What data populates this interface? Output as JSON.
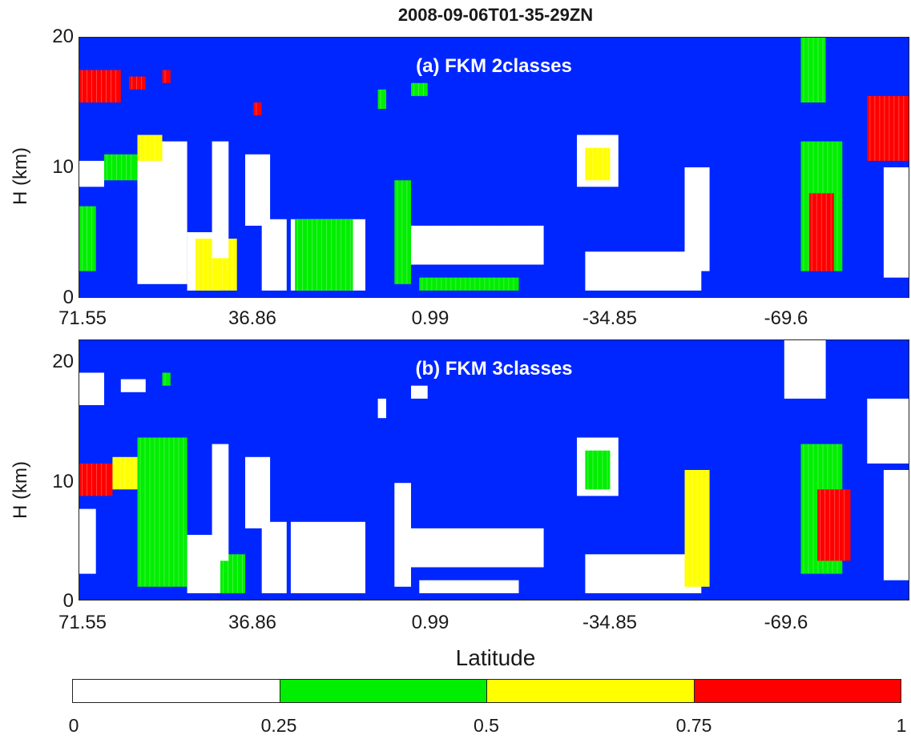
{
  "title": "2008-09-06T01-35-29ZN",
  "xlabel": "Latitude",
  "ylabel": "H (km)",
  "colors": {
    "background": "#0026ff",
    "class_0_0.25": "#ffffff",
    "class_0.25_0.5": "#00ee00",
    "class_0.5_0.75": "#ffff00",
    "class_0.75_1": "#ff0000"
  },
  "colorbar": {
    "ticks": [
      "0",
      "0.25",
      "0.5",
      "0.75",
      "1"
    ],
    "colors": [
      "#ffffff",
      "#00ee00",
      "#ffff00",
      "#ff0000"
    ]
  },
  "chart_data": [
    {
      "type": "heatmap",
      "panel_label": "(a) FKM 2classes",
      "ylabel": "H (km)",
      "ylim": [
        0,
        20
      ],
      "yticks": [
        "0",
        "10",
        "20"
      ],
      "xticks": [
        "71.55",
        "36.86",
        "0.99",
        "-34.85",
        "-69.6"
      ],
      "xlabel": "",
      "regions": [
        {
          "x": [
            0.0,
            0.05
          ],
          "y": [
            15.0,
            17.5
          ],
          "v": 0.9
        },
        {
          "x": [
            0.06,
            0.08
          ],
          "y": [
            16.0,
            17.0
          ],
          "v": 0.9
        },
        {
          "x": [
            0.1,
            0.11
          ],
          "y": [
            16.5,
            17.5
          ],
          "v": 0.8
        },
        {
          "x": [
            0.0,
            0.03
          ],
          "y": [
            8.5,
            10.5
          ],
          "v": 0.1
        },
        {
          "x": [
            0.03,
            0.07
          ],
          "y": [
            9.0,
            11.0
          ],
          "v": 0.35
        },
        {
          "x": [
            0.07,
            0.13
          ],
          "y": [
            1.0,
            12.0
          ],
          "v": 0.1
        },
        {
          "x": [
            0.07,
            0.1
          ],
          "y": [
            10.5,
            12.5
          ],
          "v": 0.55
        },
        {
          "x": [
            0.0,
            0.02
          ],
          "y": [
            2.0,
            7.0
          ],
          "v": 0.35
        },
        {
          "x": [
            0.13,
            0.17
          ],
          "y": [
            0.5,
            5.0
          ],
          "v": 0.1
        },
        {
          "x": [
            0.14,
            0.19
          ],
          "y": [
            0.5,
            4.5
          ],
          "v": 0.7
        },
        {
          "x": [
            0.16,
            0.18
          ],
          "y": [
            3.0,
            12.0
          ],
          "v": 0.1
        },
        {
          "x": [
            0.2,
            0.23
          ],
          "y": [
            5.5,
            11.0
          ],
          "v": 0.1
        },
        {
          "x": [
            0.21,
            0.22
          ],
          "y": [
            14.0,
            15.0
          ],
          "v": 0.9
        },
        {
          "x": [
            0.22,
            0.25
          ],
          "y": [
            0.5,
            6.0
          ],
          "v": 0.1
        },
        {
          "x": [
            0.255,
            0.345
          ],
          "y": [
            0.5,
            6.0
          ],
          "v": 0.1
        },
        {
          "x": [
            0.26,
            0.33
          ],
          "y": [
            0.5,
            6.0
          ],
          "v": 0.45
        },
        {
          "x": [
            0.38,
            0.4
          ],
          "y": [
            1.0,
            9.0
          ],
          "v": 0.3
        },
        {
          "x": [
            0.4,
            0.56
          ],
          "y": [
            2.5,
            5.5
          ],
          "v": 0.1
        },
        {
          "x": [
            0.41,
            0.53
          ],
          "y": [
            0.5,
            1.5
          ],
          "v": 0.35
        },
        {
          "x": [
            0.36,
            0.37
          ],
          "y": [
            14.5,
            16.0
          ],
          "v": 0.3
        },
        {
          "x": [
            0.4,
            0.42
          ],
          "y": [
            15.5,
            16.5
          ],
          "v": 0.4
        },
        {
          "x": [
            0.6,
            0.65
          ],
          "y": [
            8.5,
            12.5
          ],
          "v": 0.1
        },
        {
          "x": [
            0.61,
            0.64
          ],
          "y": [
            9.0,
            11.5
          ],
          "v": 0.55
        },
        {
          "x": [
            0.61,
            0.75
          ],
          "y": [
            0.5,
            3.5
          ],
          "v": 0.2
        },
        {
          "x": [
            0.73,
            0.76
          ],
          "y": [
            2.0,
            10.0
          ],
          "v": 0.15
        },
        {
          "x": [
            0.87,
            0.9
          ],
          "y": [
            15.0,
            20.0
          ],
          "v": 0.4
        },
        {
          "x": [
            0.87,
            0.92
          ],
          "y": [
            2.0,
            12.0
          ],
          "v": 0.3
        },
        {
          "x": [
            0.88,
            0.91
          ],
          "y": [
            2.0,
            8.0
          ],
          "v": 0.75
        },
        {
          "x": [
            0.95,
            1.0
          ],
          "y": [
            10.5,
            15.5
          ],
          "v": 0.9
        },
        {
          "x": [
            0.97,
            1.0
          ],
          "y": [
            1.5,
            10.0
          ],
          "v": 0.15
        }
      ]
    },
    {
      "type": "heatmap",
      "panel_label": "(b) FKM 3classes",
      "ylabel": "H (km)",
      "ylim": [
        0,
        20
      ],
      "yticks": [
        "0",
        "10",
        "20"
      ],
      "xticks": [
        "71.55",
        "36.86",
        "0.99",
        "-34.85",
        "-69.6"
      ],
      "xlabel": "Latitude",
      "regions": [
        {
          "x": [
            0.0,
            0.03
          ],
          "y": [
            15.0,
            17.5
          ],
          "v": 0.1
        },
        {
          "x": [
            0.05,
            0.08
          ],
          "y": [
            16.0,
            17.0
          ],
          "v": 0.1
        },
        {
          "x": [
            0.1,
            0.11
          ],
          "y": [
            16.5,
            17.5
          ],
          "v": 0.3
        },
        {
          "x": [
            0.0,
            0.04
          ],
          "y": [
            8.0,
            10.5
          ],
          "v": 0.9
        },
        {
          "x": [
            0.04,
            0.07
          ],
          "y": [
            8.5,
            11.0
          ],
          "v": 0.6
        },
        {
          "x": [
            0.07,
            0.13
          ],
          "y": [
            1.0,
            12.5
          ],
          "v": 0.35
        },
        {
          "x": [
            0.0,
            0.02
          ],
          "y": [
            2.0,
            7.0
          ],
          "v": 0.1
        },
        {
          "x": [
            0.13,
            0.17
          ],
          "y": [
            0.5,
            5.0
          ],
          "v": 0.1
        },
        {
          "x": [
            0.17,
            0.2
          ],
          "y": [
            0.5,
            3.5
          ],
          "v": 0.35
        },
        {
          "x": [
            0.16,
            0.18
          ],
          "y": [
            3.0,
            12.0
          ],
          "v": 0.1
        },
        {
          "x": [
            0.2,
            0.23
          ],
          "y": [
            5.5,
            11.0
          ],
          "v": 0.1
        },
        {
          "x": [
            0.22,
            0.25
          ],
          "y": [
            0.5,
            6.0
          ],
          "v": 0.1
        },
        {
          "x": [
            0.255,
            0.345
          ],
          "y": [
            0.5,
            6.0
          ],
          "v": 0.1
        },
        {
          "x": [
            0.38,
            0.4
          ],
          "y": [
            1.0,
            9.0
          ],
          "v": 0.2
        },
        {
          "x": [
            0.4,
            0.56
          ],
          "y": [
            2.5,
            5.5
          ],
          "v": 0.1
        },
        {
          "x": [
            0.41,
            0.53
          ],
          "y": [
            0.5,
            1.5
          ],
          "v": 0.1
        },
        {
          "x": [
            0.36,
            0.37
          ],
          "y": [
            14.0,
            15.5
          ],
          "v": 0.1
        },
        {
          "x": [
            0.4,
            0.42
          ],
          "y": [
            15.5,
            16.5
          ],
          "v": 0.1
        },
        {
          "x": [
            0.6,
            0.65
          ],
          "y": [
            8.0,
            12.5
          ],
          "v": 0.1
        },
        {
          "x": [
            0.61,
            0.64
          ],
          "y": [
            8.5,
            11.5
          ],
          "v": 0.3
        },
        {
          "x": [
            0.61,
            0.75
          ],
          "y": [
            0.5,
            3.5
          ],
          "v": 0.1
        },
        {
          "x": [
            0.73,
            0.76
          ],
          "y": [
            1.0,
            10.0
          ],
          "v": 0.7
        },
        {
          "x": [
            0.85,
            0.9
          ],
          "y": [
            15.5,
            20.0
          ],
          "v": 0.1
        },
        {
          "x": [
            0.87,
            0.92
          ],
          "y": [
            2.0,
            12.0
          ],
          "v": 0.3
        },
        {
          "x": [
            0.89,
            0.93
          ],
          "y": [
            3.0,
            8.5
          ],
          "v": 0.75
        },
        {
          "x": [
            0.95,
            1.0
          ],
          "y": [
            10.5,
            15.5
          ],
          "v": 0.1
        },
        {
          "x": [
            0.97,
            1.0
          ],
          "y": [
            1.5,
            10.0
          ],
          "v": 0.2
        }
      ]
    }
  ]
}
